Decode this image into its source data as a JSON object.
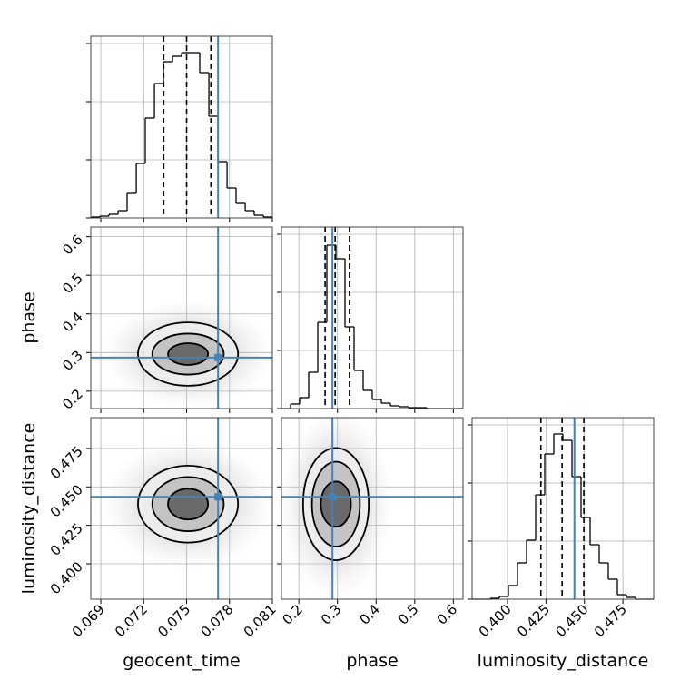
{
  "chart_data": [
    {
      "type": "histogram",
      "xlim": [
        0.0683,
        0.081
      ],
      "xticks": [
        0.069,
        0.072,
        0.075,
        0.078,
        0.081
      ],
      "ylim": [
        0,
        200
      ],
      "yticks": [
        0,
        64,
        128,
        192
      ],
      "grid": true,
      "color": "#000000",
      "bins": [
        0.0683,
        0.06894,
        0.06957,
        0.07021,
        0.07084,
        0.07148,
        0.07211,
        0.07275,
        0.07338,
        0.07402,
        0.07465,
        0.07529,
        0.07592,
        0.07656,
        0.07719,
        0.07783,
        0.07846,
        0.0791,
        0.07973,
        0.08037,
        0.081
      ],
      "values": [
        1,
        2,
        4,
        8,
        27,
        60,
        110,
        148,
        172,
        178,
        182,
        182,
        160,
        112,
        62,
        33,
        16,
        8,
        3,
        1
      ],
      "quantiles": [
        0.0734,
        0.075,
        0.0767
      ],
      "truth": 0.0772,
      "truth_color": "#4682b4"
    },
    {
      "type": "contour",
      "xlim": [
        0.0683,
        0.081
      ],
      "xticks": [
        0.069,
        0.072,
        0.075,
        0.078,
        0.081
      ],
      "ylim": [
        0.155,
        0.625
      ],
      "yticks": [
        0.2,
        0.3,
        0.4,
        0.5,
        0.6
      ],
      "ytick_labels": true,
      "ylabel": "phase",
      "grid": true,
      "contours": [
        {
          "cx": 0.0751,
          "cy": 0.296,
          "rx": 0.0035,
          "ry": 0.082
        },
        {
          "cx": 0.0751,
          "cy": 0.296,
          "rx": 0.0025,
          "ry": 0.053
        },
        {
          "cx": 0.0751,
          "cy": 0.296,
          "rx": 0.0014,
          "ry": 0.028
        }
      ],
      "truth": [
        0.0772,
        0.287
      ],
      "truth_color": "#4682b4"
    },
    {
      "type": "histogram",
      "xlim": [
        0.155,
        0.625
      ],
      "xticks": [
        0.2,
        0.3,
        0.4,
        0.5,
        0.6
      ],
      "ylim": [
        0,
        200
      ],
      "yticks": [
        0,
        64,
        128,
        192
      ],
      "grid": true,
      "color": "#000000",
      "bins": [
        0.155,
        0.1785,
        0.202,
        0.2255,
        0.249,
        0.2725,
        0.296,
        0.3195,
        0.343,
        0.3665,
        0.39,
        0.4135,
        0.437,
        0.4605,
        0.484,
        0.5075,
        0.531,
        0.5545,
        0.578,
        0.6015,
        0.625
      ],
      "values": [
        0,
        5,
        12,
        40,
        95,
        180,
        165,
        90,
        42,
        20,
        10,
        6,
        3,
        2,
        1,
        1,
        0,
        0,
        0,
        0
      ],
      "quantiles": [
        0.268,
        0.294,
        0.331
      ],
      "truth": 0.287,
      "truth_color": "#4682b4"
    },
    {
      "type": "contour",
      "xlim": [
        0.0683,
        0.081
      ],
      "xticks": [
        0.069,
        0.072,
        0.075,
        0.078,
        0.081
      ],
      "xtick_labels": true,
      "xlabel": "geocent_time",
      "ylim": [
        0.377,
        0.495
      ],
      "yticks": [
        {
          "value": 0.4,
          "label": "0.400"
        },
        0.425,
        {
          "value": 0.45,
          "label": "0.450"
        },
        0.475
      ],
      "ytick_labels": true,
      "ylabel": "luminosity_distance",
      "grid": true,
      "contours": [
        {
          "cx": 0.0751,
          "cy": 0.4388,
          "rx": 0.0035,
          "ry": 0.025
        },
        {
          "cx": 0.0751,
          "cy": 0.4388,
          "rx": 0.0025,
          "ry": 0.0176
        },
        {
          "cx": 0.0751,
          "cy": 0.4388,
          "rx": 0.0014,
          "ry": 0.01
        }
      ],
      "truth": [
        0.0772,
        0.4435
      ],
      "truth_color": "#4682b4"
    },
    {
      "type": "contour",
      "xlim": [
        0.155,
        0.625
      ],
      "xticks": [
        0.2,
        0.3,
        0.4,
        0.5,
        0.6
      ],
      "xtick_labels": true,
      "xlabel": "phase",
      "ylim": [
        0.377,
        0.495
      ],
      "yticks": [
        0.4,
        0.425,
        0.45,
        0.475
      ],
      "grid": true,
      "contours": [
        {
          "cx": 0.296,
          "cy": 0.4388,
          "rx": 0.085,
          "ry": 0.0365
        },
        {
          "cx": 0.296,
          "cy": 0.4388,
          "rx": 0.062,
          "ry": 0.0276
        },
        {
          "cx": 0.296,
          "cy": 0.4388,
          "rx": 0.039,
          "ry": 0.0147
        }
      ],
      "truth": [
        0.287,
        0.4435
      ],
      "truth_color": "#4682b4"
    },
    {
      "type": "histogram",
      "xlim": [
        0.377,
        0.495
      ],
      "xticks": [
        {
          "value": 0.4,
          "label": "0.400"
        },
        0.425,
        {
          "value": 0.45,
          "label": "0.450"
        },
        0.475
      ],
      "xtick_labels": true,
      "xlabel": "luminosity_distance",
      "ylim": [
        0,
        200
      ],
      "yticks": [
        0,
        64,
        128,
        192
      ],
      "grid": true,
      "color": "#000000",
      "bins": [
        0.377,
        0.3829,
        0.3888,
        0.3947,
        0.4006,
        0.4065,
        0.4124,
        0.4183,
        0.4242,
        0.4301,
        0.436,
        0.4419,
        0.4478,
        0.4537,
        0.4596,
        0.4655,
        0.4714,
        0.4773,
        0.4832,
        0.4891,
        0.495
      ],
      "values": [
        0,
        0,
        1,
        3,
        15,
        40,
        65,
        115,
        160,
        182,
        175,
        135,
        90,
        60,
        40,
        22,
        5,
        2,
        0,
        0
      ],
      "quantiles": [
        0.4217,
        0.4355,
        0.4496
      ],
      "truth": 0.4435,
      "truth_color": "#4682b4"
    }
  ]
}
